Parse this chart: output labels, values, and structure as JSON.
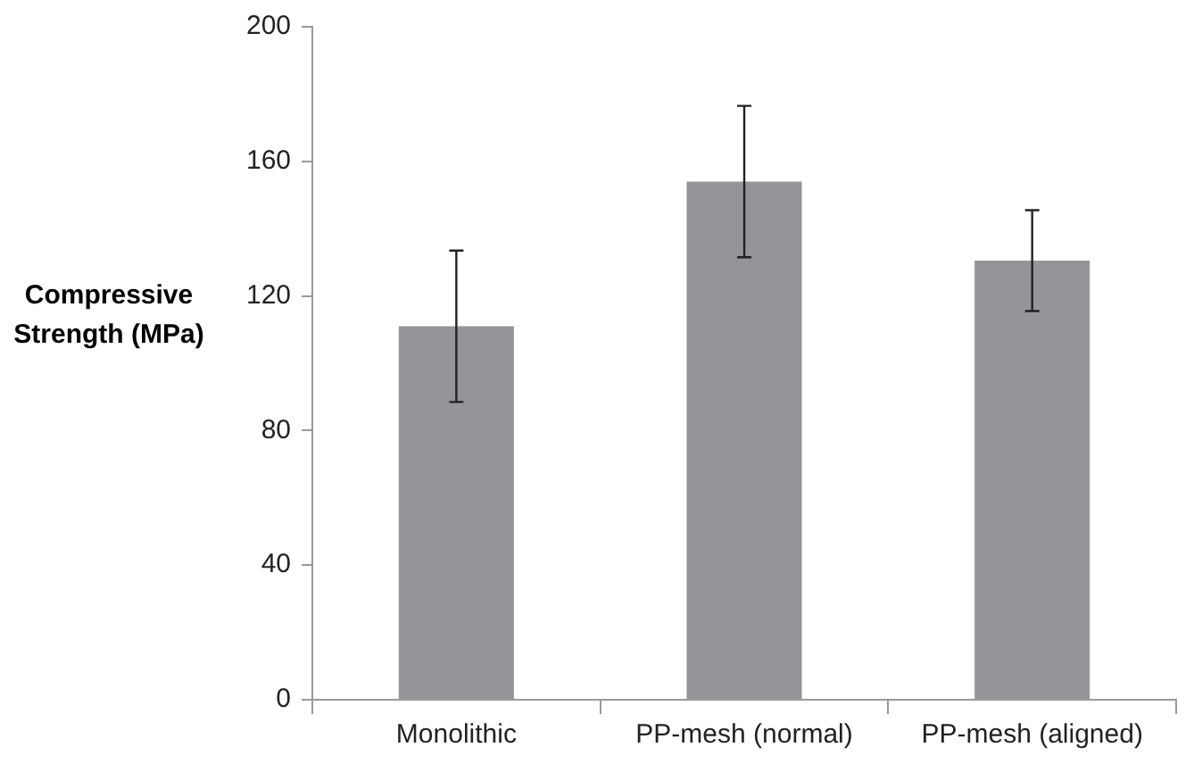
{
  "chart_data": {
    "type": "bar",
    "ylabel": "Compressive Strength (MPa)",
    "categories": [
      "Monolithic",
      "PP-mesh (normal)",
      "PP-mesh (aligned)"
    ],
    "values": [
      111,
      154,
      130.5
    ],
    "errors": [
      22.5,
      22.5,
      15
    ],
    "color": "#939598",
    "ylim": [
      0,
      200
    ],
    "yticks": [
      0,
      40,
      80,
      120,
      160,
      200
    ],
    "grid": false,
    "legend": false
  }
}
